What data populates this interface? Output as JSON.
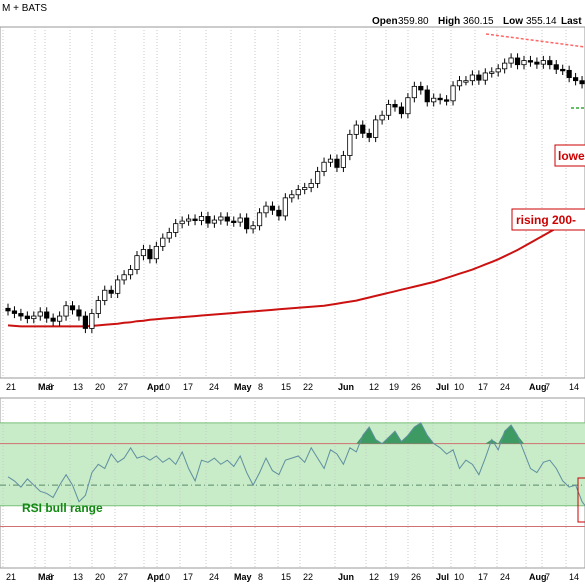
{
  "header": {
    "symbol_suffix": "M + BATS",
    "open_label": "Open",
    "open_value": "359.80",
    "high_label": "High",
    "high_value": "360.15",
    "low_label": "Low",
    "low_value": "355.14",
    "last_label": "Last"
  },
  "annotations": {
    "lower": "lowe",
    "rising": "rising 200-",
    "rsi": "RSI bull range"
  },
  "colors": {
    "candle": "#000000",
    "ma_line": "#cc1111",
    "rsi_line": "#5f8fa0",
    "rsi_band": "#c8ebc8",
    "rsi_fill_above": "#3d9a62",
    "rsi_fill_below": "#f4a7a7",
    "trend_dash": "#ff6666",
    "support_dash": "#33aa33",
    "grid": "#c8c8c8"
  },
  "chart_data": {
    "type": "candlestick",
    "x_tick_labels": [
      {
        "label": "21",
        "bold": false
      },
      {
        "label": "Mar",
        "bold": true
      },
      {
        "label": "6",
        "bold": false
      },
      {
        "label": "13",
        "bold": false
      },
      {
        "label": "20",
        "bold": false
      },
      {
        "label": "27",
        "bold": false
      },
      {
        "label": "Apr",
        "bold": true
      },
      {
        "label": "10",
        "bold": false
      },
      {
        "label": "17",
        "bold": false
      },
      {
        "label": "24",
        "bold": false
      },
      {
        "label": "May",
        "bold": true
      },
      {
        "label": "8",
        "bold": false
      },
      {
        "label": "15",
        "bold": false
      },
      {
        "label": "22",
        "bold": false
      },
      {
        "label": "Jun",
        "bold": true
      },
      {
        "label": "12",
        "bold": false
      },
      {
        "label": "19",
        "bold": false
      },
      {
        "label": "26",
        "bold": false
      },
      {
        "label": "Jul",
        "bold": true
      },
      {
        "label": "10",
        "bold": false
      },
      {
        "label": "17",
        "bold": false
      },
      {
        "label": "24",
        "bold": false
      },
      {
        "label": "Aug",
        "bold": true
      },
      {
        "label": "7",
        "bold": false
      },
      {
        "label": "14",
        "bold": false
      }
    ],
    "price_ylim": [
      296,
      364
    ],
    "price_close": [
      309,
      308.5,
      308,
      307.5,
      308,
      308.8,
      307.6,
      307,
      308,
      310,
      309.2,
      308,
      305.6,
      308.5,
      311,
      313,
      312.4,
      315,
      316,
      317,
      319.7,
      320.9,
      319.1,
      321.5,
      323.1,
      324.2,
      325.9,
      326.4,
      326.8,
      326.5,
      327.3,
      326,
      326.6,
      327.2,
      326.4,
      326.2,
      327,
      324.9,
      325.5,
      328,
      329.3,
      328.5,
      327.4,
      330.9,
      331.5,
      332.5,
      332.9,
      333.7,
      336,
      337.8,
      338.4,
      336.8,
      339.1,
      343.2,
      345,
      343.4,
      342.6,
      346,
      346.9,
      349,
      348.5,
      347.2,
      350.3,
      352.5,
      351.8,
      349.5,
      350.2,
      349.9,
      349.7,
      352.6,
      353.6,
      353.6,
      354.7,
      353.7,
      355.1,
      355.3,
      355.9,
      357,
      358,
      356.7,
      357.5,
      357.2,
      356.8,
      357.5,
      356.7,
      355.8,
      355.6,
      354.2,
      353.6,
      353,
      351
    ],
    "ma200": [
      306.2,
      306.1,
      306,
      306,
      306,
      306,
      306,
      306,
      306,
      306,
      306,
      306,
      306,
      306.1,
      306.2,
      306.3,
      306.4,
      306.5,
      306.7,
      306.8,
      307,
      307.1,
      307.3,
      307.4,
      307.5,
      307.6,
      307.7,
      307.8,
      307.9,
      308,
      308.1,
      308.2,
      308.3,
      308.4,
      308.5,
      308.6,
      308.7,
      308.8,
      308.9,
      309,
      309.1,
      309.2,
      309.3,
      309.4,
      309.5,
      309.6,
      309.7,
      309.8,
      309.9,
      310,
      310.2,
      310.4,
      310.6,
      310.8,
      311,
      311.3,
      311.6,
      311.9,
      312.2,
      312.5,
      312.8,
      313.1,
      313.4,
      313.7,
      314,
      314.3,
      314.6,
      315,
      315.4,
      315.8,
      316.2,
      316.6,
      317,
      317.5,
      318,
      318.5,
      319,
      319.6,
      320.2,
      320.8,
      321.5,
      322.2,
      322.9,
      323.6,
      324.3,
      325,
      325.7,
      326.4,
      327.1,
      327.7,
      328.3
    ],
    "rsi_ylim": [
      10,
      92
    ],
    "rsi_bull_range": [
      40,
      80
    ],
    "rsi_levels": [
      30,
      50,
      70
    ],
    "rsi": [
      54,
      52,
      49,
      53,
      50,
      47,
      46,
      44,
      50,
      55,
      50,
      42,
      45,
      56,
      60,
      58,
      65,
      61,
      63,
      68,
      63,
      64,
      62,
      64,
      61,
      63,
      60,
      66,
      58,
      52,
      62,
      61,
      63,
      60,
      62,
      59,
      64,
      56,
      50,
      56,
      63,
      57,
      55,
      62,
      63,
      64,
      61,
      68,
      63,
      58,
      67,
      65,
      60,
      68,
      66,
      74,
      78,
      72,
      70,
      73,
      76,
      71,
      74,
      78,
      80,
      74,
      70,
      68,
      65,
      67,
      58,
      62,
      60,
      55,
      63,
      72,
      67,
      76,
      79,
      74,
      66,
      58,
      56,
      61,
      62,
      58,
      52,
      49,
      50,
      42,
      38
    ]
  }
}
